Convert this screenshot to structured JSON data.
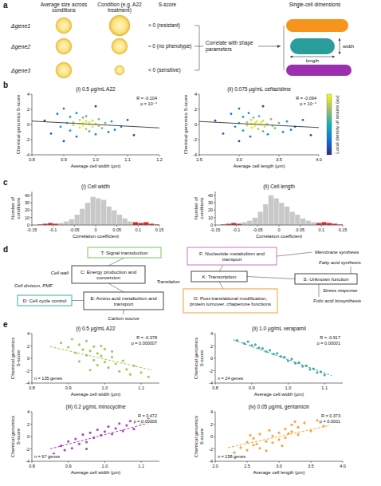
{
  "panel_a": {
    "letter": "a",
    "headers": [
      "Average size across conditions",
      "Condition (e.g. A22 treatment)",
      "S-score",
      "Single-cell dimensions"
    ],
    "rows": [
      {
        "gene": "Δgene1",
        "s_score": "> 0 (resistant)"
      },
      {
        "gene": "Δgene2",
        "s_score": "≈ 0 (no phenotype)"
      },
      {
        "gene": "Δgene3",
        "s_score": "< 0 (sensitive)"
      }
    ],
    "link_label": "Correlate with shape parameters",
    "width_label": "width",
    "length_label": "length"
  },
  "chart_data": [
    {
      "letter": "b",
      "type": "scatter",
      "title": "(i) 0.5 μg/mL A22",
      "x_label": "Average cell width (μm)",
      "y_label": "Chemical genomics S-score",
      "annotations": [
        "R = -0.104",
        "p = 10⁻⁴"
      ],
      "x": [
        0.84,
        0.86,
        0.88,
        0.89,
        0.9,
        0.91,
        0.92,
        0.92,
        0.93,
        0.93,
        0.94,
        0.94,
        0.95,
        0.95,
        0.95,
        0.96,
        0.96,
        0.96,
        0.97,
        0.97,
        0.97,
        0.98,
        0.98,
        0.98,
        0.99,
        0.99,
        1.0,
        1.0,
        1.01,
        1.01,
        1.02,
        1.03,
        1.04,
        1.05,
        1.06,
        1.08,
        1.1,
        1.12,
        0.9,
        1.0
      ],
      "values": [
        0.5,
        -1.2,
        1.4,
        -0.3,
        2.1,
        0.2,
        -0.8,
        1.0,
        0.3,
        -0.1,
        1.5,
        -1.6,
        0.6,
        0.1,
        -0.4,
        0.9,
        0.2,
        -0.2,
        0.4,
        -0.6,
        1.1,
        0.0,
        0.3,
        -0.9,
        0.5,
        -0.3,
        0.1,
        -1.3,
        0.7,
        -0.2,
        -0.5,
        0.2,
        -1.0,
        0.4,
        -0.7,
        -0.3,
        0.6,
        -1.4,
        -2.2,
        2.4
      ],
      "density": [
        0.15,
        0.2,
        0.25,
        0.4,
        0.25,
        0.55,
        0.45,
        0.5,
        0.8,
        0.85,
        0.4,
        0.3,
        0.85,
        0.95,
        0.9,
        0.7,
        0.95,
        1.0,
        0.9,
        0.8,
        0.6,
        1.0,
        0.95,
        0.6,
        0.9,
        0.9,
        0.85,
        0.35,
        0.7,
        0.8,
        0.7,
        0.65,
        0.35,
        0.45,
        0.3,
        0.3,
        0.2,
        0.1,
        0.1,
        0.1
      ],
      "colorbar_lim": [
        0,
        1
      ],
      "fit_x": [
        0.8,
        1.2
      ],
      "fit_y": [
        0.45,
        -0.45
      ],
      "line_style": "solid",
      "xlim": [
        0.8,
        1.2
      ],
      "xticks": [
        0.8,
        0.9,
        {
          "value": 1,
          "label": "1.0"
        },
        1.1,
        1.2
      ],
      "ylim": [
        -4,
        4
      ],
      "yticks": [
        -4,
        -2,
        0,
        2,
        4
      ]
    },
    {
      "type": "scatter",
      "title": "(ii) 0.075 μg/mL ceftazidime",
      "x_label": "Average cell length (μm)",
      "y_label": "Chemical genomics S-score",
      "annotations": [
        "R = -0.094",
        "p = 10⁻⁴"
      ],
      "x": [
        2.7,
        2.8,
        2.9,
        2.95,
        3.0,
        3.0,
        3.05,
        3.05,
        3.1,
        3.1,
        3.12,
        3.14,
        3.15,
        3.15,
        3.16,
        3.18,
        3.2,
        3.2,
        3.22,
        3.24,
        3.25,
        3.26,
        3.28,
        3.3,
        3.3,
        3.32,
        3.35,
        3.36,
        3.4,
        3.42,
        3.45,
        3.5,
        3.55,
        3.6,
        3.65,
        3.7,
        3.8,
        3.9,
        3.0,
        3.3
      ],
      "values": [
        0.5,
        -1.2,
        1.4,
        -0.3,
        2.1,
        0.2,
        -0.8,
        1.0,
        0.3,
        -0.1,
        1.5,
        -1.6,
        0.6,
        0.1,
        -0.4,
        0.9,
        0.2,
        -0.2,
        0.4,
        -0.6,
        1.1,
        0.0,
        0.3,
        -0.9,
        0.5,
        -0.3,
        0.1,
        -1.3,
        0.7,
        -0.2,
        -0.5,
        0.2,
        -1.0,
        0.4,
        -0.7,
        -0.3,
        0.6,
        -1.4,
        -2.2,
        2.4
      ],
      "density": [
        0.15,
        0.2,
        0.25,
        0.4,
        0.25,
        0.55,
        0.45,
        0.5,
        0.8,
        0.85,
        0.4,
        0.3,
        0.85,
        0.95,
        0.9,
        0.7,
        0.95,
        1.0,
        0.9,
        0.8,
        0.6,
        1.0,
        0.95,
        0.6,
        0.9,
        0.9,
        0.85,
        0.35,
        0.7,
        0.8,
        0.7,
        0.65,
        0.35,
        0.45,
        0.3,
        0.3,
        0.2,
        0.1,
        0.1,
        0.1
      ],
      "colorbar_lim": [
        0,
        1
      ],
      "colorbar_label": "Local density of strains (au)",
      "fit_x": [
        2.5,
        4.0
      ],
      "fit_y": [
        0.4,
        -0.4
      ],
      "line_style": "solid",
      "xlim": [
        2.5,
        4.0
      ],
      "xticks": [
        2.5,
        {
          "value": 3,
          "label": "3.0"
        },
        3.5,
        {
          "value": 4,
          "label": "4.0"
        }
      ],
      "ylim": [
        -4,
        4
      ],
      "yticks": [
        -4,
        -2,
        0,
        2,
        4
      ]
    },
    {
      "letter": "c",
      "type": "histogram",
      "title": "(i) Cell width",
      "x_label": "Correlation coefficient",
      "y_label": "Number of conditions",
      "bins": [
        -0.15,
        -0.1375,
        -0.125,
        -0.1125,
        -0.1,
        -0.0875,
        -0.075,
        -0.0625,
        -0.05,
        -0.0375,
        -0.025,
        -0.0125,
        0,
        0.0125,
        0.025,
        0.0375,
        0.05,
        0.0625,
        0.075,
        0.0875,
        0.1,
        0.1125,
        0.125,
        0.1375,
        0.15
      ],
      "counts": [
        0,
        1,
        2,
        3,
        2,
        3,
        5,
        8,
        14,
        22,
        30,
        38,
        36,
        34,
        25,
        20,
        14,
        9,
        5,
        4,
        3,
        4,
        2,
        1
      ],
      "colors": [
        "#e3211c",
        "#e3211c",
        "#e3211c",
        "#e3211c",
        "#e3211c",
        "#c8c8c8",
        "#c8c8c8",
        "#c8c8c8",
        "#c8c8c8",
        "#c8c8c8",
        "#c8c8c8",
        "#c8c8c8",
        "#c8c8c8",
        "#c8c8c8",
        "#c8c8c8",
        "#c8c8c8",
        "#c8c8c8",
        "#c8c8c8",
        "#c8c8c8",
        "#e3211c",
        "#e3211c",
        "#e3211c",
        "#e3211c",
        "#e3211c"
      ],
      "xlim": [
        -0.15,
        0.15
      ],
      "xticks": [
        -0.15,
        -0.1,
        -0.05,
        0,
        0.05,
        0.1,
        0.15
      ],
      "ylim": [
        0,
        45
      ],
      "yticks": [
        0,
        10,
        20,
        30,
        40
      ]
    },
    {
      "type": "histogram",
      "title": "(ii) Cell length",
      "x_label": "Correlation coefficient",
      "y_label": "Number of conditions",
      "bins": [
        -0.15,
        -0.1375,
        -0.125,
        -0.1125,
        -0.1,
        -0.0875,
        -0.075,
        -0.0625,
        -0.05,
        -0.0375,
        -0.025,
        -0.0125,
        0,
        0.0125,
        0.025,
        0.0375,
        0.05,
        0.0625,
        0.075,
        0.0875,
        0.1,
        0.1125,
        0.125,
        0.1375,
        0.15
      ],
      "counts": [
        0,
        1,
        2,
        3,
        2,
        4,
        6,
        10,
        18,
        28,
        40,
        36,
        30,
        25,
        18,
        14,
        9,
        6,
        4,
        3,
        4,
        3,
        2,
        1
      ],
      "colors": [
        "#e3211c",
        "#e3211c",
        "#e3211c",
        "#e3211c",
        "#e3211c",
        "#c8c8c8",
        "#c8c8c8",
        "#c8c8c8",
        "#c8c8c8",
        "#c8c8c8",
        "#c8c8c8",
        "#c8c8c8",
        "#c8c8c8",
        "#c8c8c8",
        "#c8c8c8",
        "#c8c8c8",
        "#c8c8c8",
        "#c8c8c8",
        "#c8c8c8",
        "#e3211c",
        "#e3211c",
        "#e3211c",
        "#e3211c",
        "#e3211c"
      ],
      "xlim": [
        -0.15,
        0.15
      ],
      "xticks": [
        -0.15,
        -0.1,
        -0.05,
        0,
        0.05,
        0.1,
        0.15
      ],
      "ylim": [
        0,
        45
      ],
      "yticks": [
        0,
        10,
        20,
        30,
        40
      ]
    },
    {
      "letter": "e",
      "type": "scatter",
      "title": "(i) 0.5 μg/mL A22",
      "x_label": "Average cell width (μm)",
      "y_label": "Chemical genomics S-score",
      "annotations": [
        "R = -0.378",
        "p = 0.000007"
      ],
      "n_label": "n = 135 genes",
      "color": "#8cc63f",
      "line_style": "dashed",
      "x": [
        0.88,
        0.9,
        0.91,
        0.92,
        0.93,
        0.94,
        0.95,
        0.95,
        0.96,
        0.97,
        0.97,
        0.98,
        0.98,
        0.99,
        1.0,
        1.0,
        1.01,
        1.02,
        1.03,
        1.04,
        1.05,
        1.06,
        1.07,
        1.08,
        1.1,
        1.12,
        0.93,
        0.96,
        0.99,
        1.02
      ],
      "values": [
        2.5,
        1.8,
        3.1,
        0.9,
        2.2,
        1.4,
        0.5,
        2.8,
        1.2,
        -0.3,
        1.9,
        0.8,
        -1.1,
        0.4,
        1.5,
        -0.6,
        -1.5,
        0.2,
        -0.9,
        -2.1,
        -0.4,
        -1.8,
        -2.6,
        -1.2,
        -2.3,
        -3.0,
        -0.5,
        -1.9,
        2.0,
        1.1
      ],
      "fit_x": [
        0.85,
        1.13
      ],
      "fit_y": [
        1.9,
        -1.9
      ],
      "xlim": [
        0.8,
        1.15
      ],
      "xticks": [
        0.8,
        0.9,
        {
          "value": 1,
          "label": "1.0"
        },
        1.1
      ],
      "ylim": [
        -4,
        4
      ],
      "yticks": [
        -4,
        -2,
        0,
        2,
        4
      ]
    },
    {
      "type": "scatter",
      "title": "(ii) 1.0 μg/mL verapamil",
      "x_label": "Average cell width (μm)",
      "y_label": "Chemical genomics S-score",
      "annotations": [
        "R = -0.917",
        "p = 0.00001"
      ],
      "n_label": "n = 24 genes",
      "color": "#2a9d9b",
      "line_style": "dashed",
      "x": [
        0.86,
        0.88,
        0.89,
        0.9,
        0.91,
        0.92,
        0.93,
        0.94,
        0.95,
        0.96,
        0.97,
        0.98,
        0.99,
        1.0,
        1.01,
        1.02,
        1.03,
        1.04,
        1.05,
        1.06,
        1.07,
        1.08,
        1.09,
        1.1
      ],
      "values": [
        2.9,
        2.4,
        2.7,
        2.1,
        2.2,
        1.7,
        1.6,
        1.1,
        1.3,
        0.7,
        0.8,
        0.3,
        0.2,
        -0.4,
        -0.1,
        -0.8,
        -0.7,
        -1.3,
        -1.2,
        -1.8,
        -1.7,
        -2.3,
        -2.2,
        -2.7
      ],
      "fit_x": [
        0.85,
        1.12
      ],
      "fit_y": [
        3.0,
        -2.8
      ],
      "xlim": [
        0.8,
        1.15
      ],
      "xticks": [
        0.8,
        0.9,
        {
          "value": 1,
          "label": "1.0"
        },
        1.1
      ],
      "ylim": [
        -4,
        4
      ],
      "yticks": [
        -4,
        -2,
        0,
        2,
        4
      ]
    },
    {
      "type": "scatter",
      "title": "(iii) 0.2 μg/mL minocycline",
      "x_label": "Average cell width (μm)",
      "y_label": "Chemical genomics S-score",
      "annotations": [
        "R = 0.472",
        "p = 0.00006"
      ],
      "n_label": "n = 67 genes",
      "color": "#9b2fae",
      "line_style": "dashed",
      "x": [
        0.86,
        0.88,
        0.89,
        0.9,
        0.91,
        0.92,
        0.93,
        0.94,
        0.95,
        0.96,
        0.97,
        0.98,
        0.99,
        1.0,
        1.01,
        1.02,
        1.03,
        1.04,
        1.05,
        1.06,
        1.07,
        1.08,
        1.1,
        1.12,
        0.95
      ],
      "values": [
        -2.8,
        -1.5,
        -2.2,
        -0.8,
        -1.9,
        -0.4,
        -1.2,
        0.3,
        -0.9,
        0.6,
        -0.2,
        1.1,
        0.2,
        0.8,
        1.6,
        0.4,
        1.3,
        2.1,
        0.9,
        1.8,
        2.5,
        1.2,
        2.2,
        3.0,
        -2.0
      ],
      "fit_x": [
        0.85,
        1.13
      ],
      "fit_y": [
        -2.0,
        2.3
      ],
      "xlim": [
        0.8,
        1.15
      ],
      "xticks": [
        0.8,
        0.9,
        {
          "value": 1,
          "label": "1.0"
        },
        1.1
      ],
      "ylim": [
        -4,
        4
      ],
      "yticks": [
        -4,
        -2,
        0,
        2,
        4
      ]
    },
    {
      "type": "scatter",
      "title": "(iv) 0.05 μg/mL gentamicin",
      "x_label": "Average cell length (μm)",
      "y_label": "Chemical genomics S-score",
      "annotations": [
        "R = 0.373",
        "p = 0.0001"
      ],
      "n_label": "n = 158 genes",
      "color": "#f7941d",
      "line_style": "dashed",
      "x": [
        2.3,
        2.4,
        2.5,
        2.5,
        2.6,
        2.6,
        2.7,
        2.7,
        2.8,
        2.8,
        2.9,
        2.9,
        3.0,
        3.0,
        3.1,
        3.1,
        3.2,
        3.2,
        3.3,
        3.3,
        3.4,
        3.5,
        3.6,
        3.7,
        2.65,
        2.85,
        3.05,
        3.25,
        2.55,
        3.15
      ],
      "values": [
        -2.6,
        -1.8,
        -2.2,
        -0.9,
        -1.4,
        -0.3,
        -1.9,
        0.4,
        -0.8,
        -2.3,
        0.1,
        -1.0,
        0.6,
        -0.5,
        1.2,
        -0.2,
        0.8,
        1.9,
        0.3,
        1.5,
        2.2,
        0.9,
        2.6,
        1.7,
        -1.2,
        1.0,
        -1.5,
        2.4,
        0.2,
        0.5
      ],
      "fit_x": [
        2.2,
        3.8
      ],
      "fit_y": [
        -1.8,
        1.8
      ],
      "xlim": [
        2,
        4
      ],
      "xticks": [
        {
          "value": 2,
          "label": "2.0"
        },
        2.5,
        {
          "value": 3,
          "label": "3.0"
        },
        3.5,
        {
          "value": 4,
          "label": "4.0"
        }
      ],
      "ylim": [
        -4,
        4
      ],
      "yticks": [
        -4,
        -2,
        0,
        2,
        4
      ]
    }
  ],
  "panel_d": {
    "letter": "d",
    "nodes": [
      {
        "label": "T: Signal transduction",
        "color": "#6cbf4a"
      },
      {
        "label": "C: Energy production and conversion",
        "color": "#333333"
      },
      {
        "label": "D: Cell cycle control",
        "color": "#2aa198"
      },
      {
        "label": "E: Amino acid metabolism and transport",
        "color": "#333333"
      },
      {
        "label": "F: Nucleotide metabolism and transport",
        "color": "#d65fb0"
      },
      {
        "label": "K: Transcription",
        "color": "#333333"
      },
      {
        "label": "O: Post-translational modification, protein turnover, chaperone functions",
        "color": "#f7941d"
      },
      {
        "label": "S: Unknown function",
        "color": "#333333"
      }
    ],
    "annotations": [
      "Cell wall",
      "Cell division, PMF",
      "Carbon source",
      "Translation",
      "Membrane synthesis",
      "Fatty acid synthesis",
      "Stress response",
      "Folic acid biosynthesis"
    ]
  }
}
